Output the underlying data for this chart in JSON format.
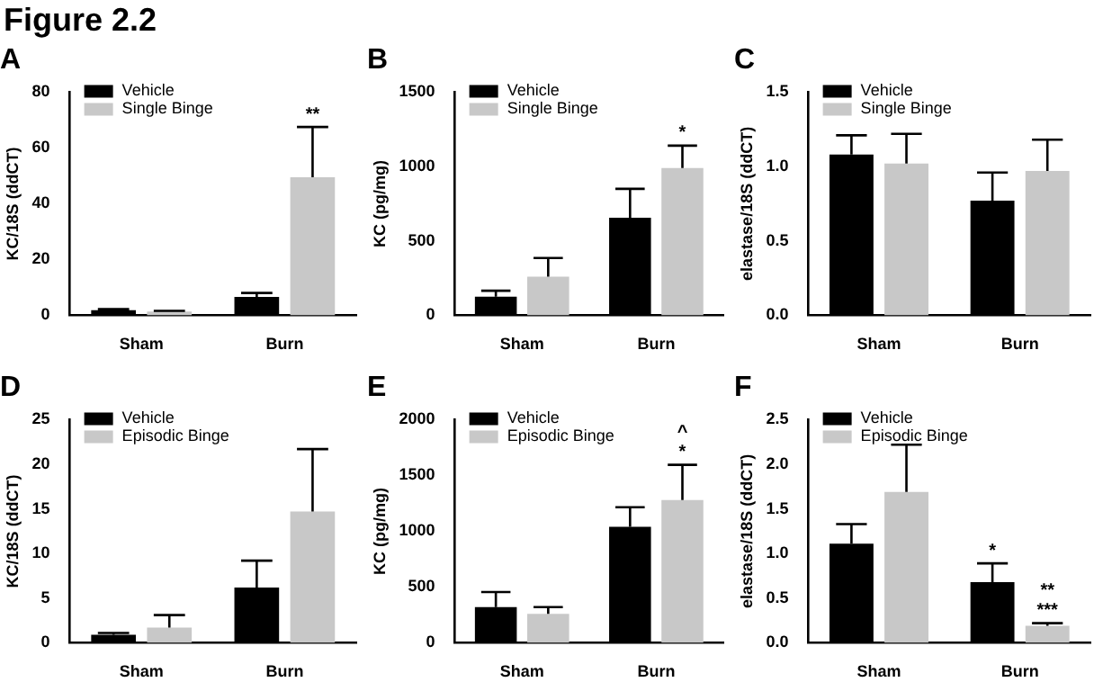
{
  "chart_data": [
    {
      "type": "bar",
      "title": "Figure 2.2",
      "subtitle": "A",
      "annotations": [
        "**"
      ],
      "ylabel": "KC/18S (ddCT)",
      "categories": [
        "Sham",
        "Burn"
      ],
      "ylim": [
        0,
        80
      ],
      "yticks": [
        0,
        20,
        40,
        60,
        80
      ],
      "legend": "top left",
      "series": [
        {
          "name": "Vehicle",
          "color": "#000000",
          "values": [
            1.8,
            6.6
          ],
          "errors": [
            [
              1.8,
              2.2
            ],
            [
              6.6,
              8
            ]
          ]
        },
        {
          "name": "Single Binge",
          "color": "#c8c8c8",
          "values": [
            1.3,
            49.5
          ],
          "errors": [
            [
              1.3,
              1.6
            ],
            [
              49.5,
              67.5
            ]
          ]
        }
      ]
    },
    {
      "type": "bar",
      "title": "B",
      "annotations": [
        "*"
      ],
      "ylabel": "KC (pg/mg)",
      "categories": [
        "Sham",
        "Burn"
      ],
      "ylim": [
        0,
        1500
      ],
      "yticks": [
        0,
        500,
        1000,
        1500
      ],
      "legend": "top left",
      "series": [
        {
          "name": "Vehicle",
          "color": "#000000",
          "values": [
            125,
            655
          ],
          "errors": [
            [
              125,
              165
            ],
            [
              655,
              850
            ]
          ]
        },
        {
          "name": "Single Binge",
          "color": "#c8c8c8",
          "values": [
            260,
            990
          ],
          "errors": [
            [
              260,
              385
            ],
            [
              990,
              1140
            ]
          ]
        }
      ]
    },
    {
      "type": "bar",
      "title": "C",
      "ylabel": "elastase/18S (ddCT)",
      "categories": [
        "Sham",
        "Burn"
      ],
      "ylim": [
        0,
        1.5
      ],
      "yticks": [
        {
          "value": 0,
          "label": "0.0"
        },
        {
          "value": 0.5,
          "label": "0.5"
        },
        {
          "value": 1,
          "label": "1.0"
        },
        {
          "value": 1.5,
          "label": "1.5"
        }
      ],
      "legend": "top left",
      "series": [
        {
          "name": "Vehicle",
          "color": "#000000",
          "values": [
            1.08,
            0.77
          ],
          "errors": [
            [
              1.08,
              1.21
            ],
            [
              0.77,
              0.96
            ]
          ]
        },
        {
          "name": "Single Binge",
          "color": "#c8c8c8",
          "values": [
            1.02,
            0.97
          ],
          "errors": [
            [
              1.02,
              1.22
            ],
            [
              0.97,
              1.18
            ]
          ]
        }
      ]
    },
    {
      "type": "bar",
      "title": "D",
      "ylabel": "KC/18S (ddCT)",
      "categories": [
        "Sham",
        "Burn"
      ],
      "ylim": [
        0,
        25
      ],
      "yticks": [
        0,
        5,
        10,
        15,
        20,
        25
      ],
      "legend": "top left",
      "series": [
        {
          "name": "Vehicle",
          "color": "#000000",
          "values": [
            0.9,
            6.2
          ],
          "errors": [
            [
              0.9,
              1.1
            ],
            [
              6.2,
              9.2
            ]
          ]
        },
        {
          "name": "Episodic Binge",
          "color": "#c8c8c8",
          "values": [
            1.7,
            14.7
          ],
          "errors": [
            [
              1.7,
              3.1
            ],
            [
              14.7,
              21.7
            ]
          ]
        }
      ]
    },
    {
      "type": "bar",
      "title": "E",
      "annotations": [
        "^",
        "*"
      ],
      "ylabel": "KC (pg/mg)",
      "categories": [
        "Sham",
        "Burn"
      ],
      "ylim": [
        0,
        2000
      ],
      "yticks": [
        0,
        500,
        1000,
        1500,
        2000
      ],
      "legend": "top left",
      "series": [
        {
          "name": "Vehicle",
          "color": "#000000",
          "values": [
            320,
            1040
          ],
          "errors": [
            [
              320,
              455
            ],
            [
              1040,
              1215
            ]
          ]
        },
        {
          "name": "Episodic Binge",
          "color": "#c8c8c8",
          "values": [
            260,
            1280
          ],
          "errors": [
            [
              260,
              320
            ],
            [
              1280,
              1595
            ]
          ]
        }
      ]
    },
    {
      "type": "bar",
      "title": "F",
      "annotations": [
        "*",
        "**",
        "***"
      ],
      "ylabel": "elastase/18S (ddCT)",
      "categories": [
        "Sham",
        "Burn"
      ],
      "ylim": [
        0,
        2.5
      ],
      "yticks": [
        {
          "value": 0,
          "label": "0.0"
        },
        {
          "value": 0.5,
          "label": "0.5"
        },
        {
          "value": 1,
          "label": "1.0"
        },
        {
          "value": 1.5,
          "label": "1.5"
        },
        {
          "value": 2,
          "label": "2.0"
        },
        {
          "value": 2.5,
          "label": "2.5"
        }
      ],
      "legend": "top left",
      "series": [
        {
          "name": "Vehicle",
          "color": "#000000",
          "values": [
            1.11,
            0.68
          ],
          "errors": [
            [
              1.11,
              1.33
            ],
            [
              0.68,
              0.89
            ]
          ]
        },
        {
          "name": "Episodic Binge",
          "color": "#c8c8c8",
          "values": [
            1.69,
            0.19
          ],
          "errors": [
            [
              1.69,
              2.22
            ],
            [
              0.19,
              0.22
            ]
          ]
        }
      ]
    }
  ]
}
